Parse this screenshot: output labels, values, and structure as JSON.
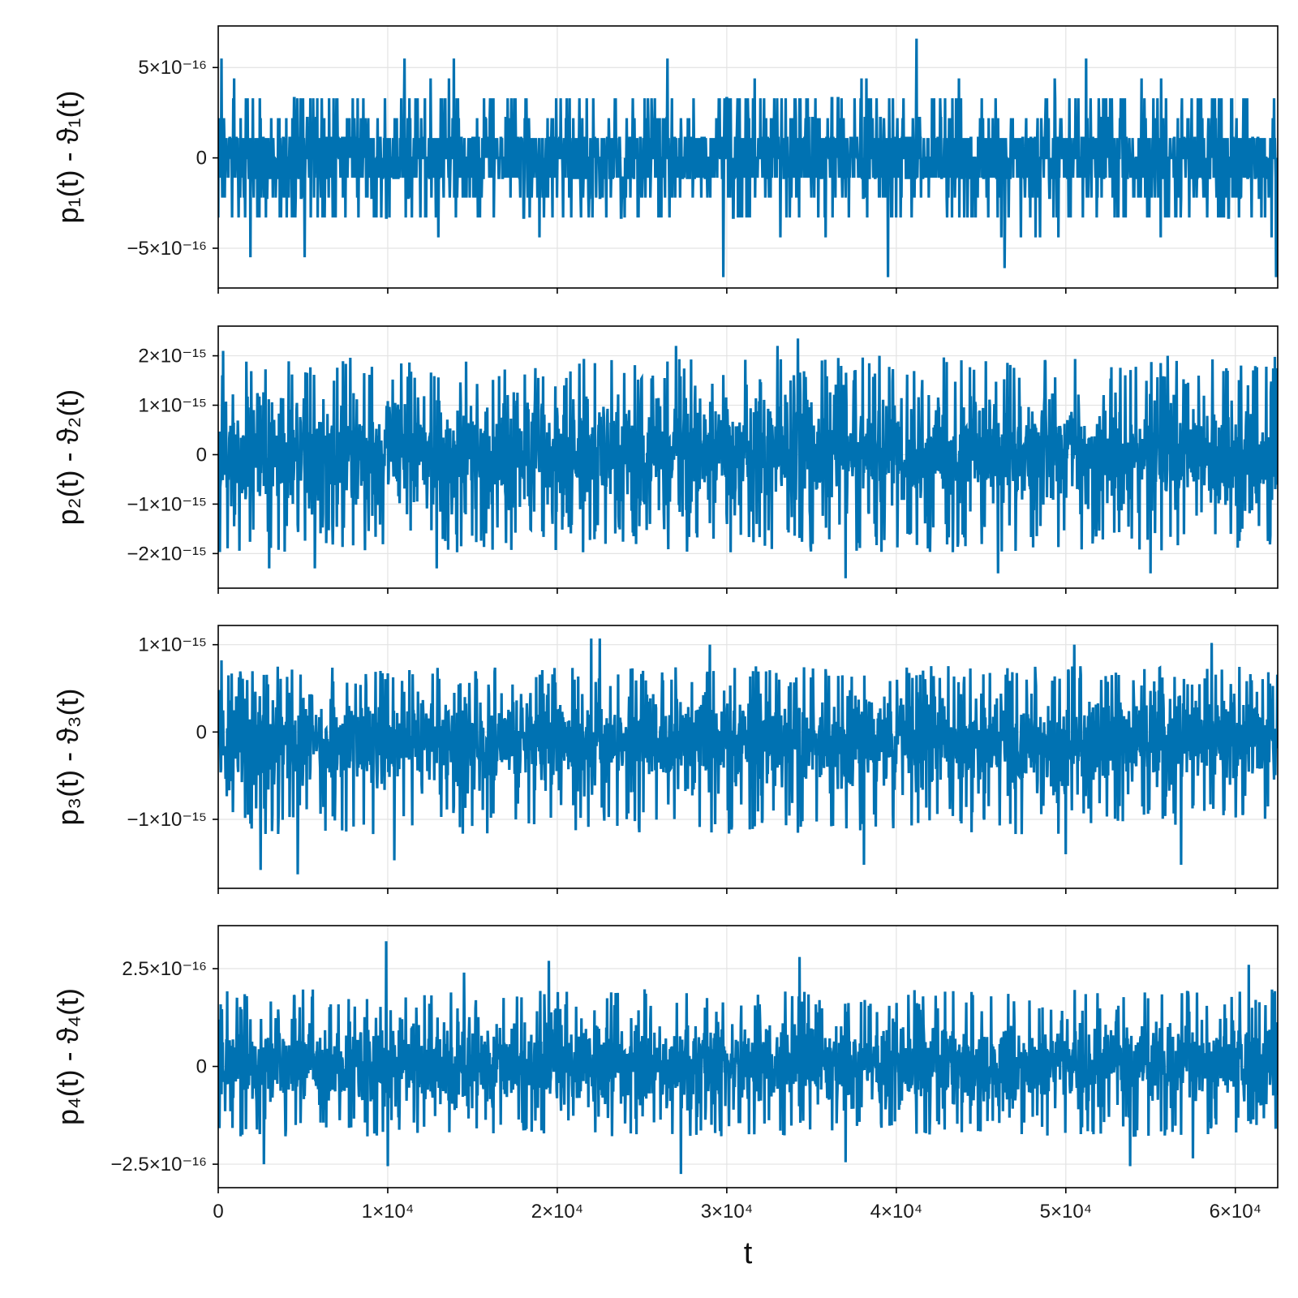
{
  "chart_data": [
    {
      "type": "line",
      "ylabel": "p₁(t) - ϑ₁(t)",
      "xlim": [
        0,
        62500
      ],
      "ylim": [
        -7.2e-16,
        7.3e-16
      ],
      "yticks": [
        {
          "value": 5e-16,
          "label": "5×10⁻¹⁶"
        },
        {
          "value": 0,
          "label": "0"
        },
        {
          "value": -5e-16,
          "label": "−5×10⁻¹⁶"
        }
      ],
      "series": [
        {
          "color": "#0072b2",
          "x_range": [
            0,
            62500
          ],
          "quantum": 1.1e-16,
          "core_band": [
            -2.2e-16,
            2.2e-16
          ],
          "peaks": [
            {
              "x": 200,
              "y": 5.5e-16
            },
            {
              "x": 11000,
              "y": 5.5e-16
            },
            {
              "x": 13900,
              "y": 5.5e-16
            },
            {
              "x": 26500,
              "y": 5.5e-16
            },
            {
              "x": 41200,
              "y": 6.6e-16
            },
            {
              "x": 51200,
              "y": 5.5e-16
            },
            {
              "x": 1900,
              "y": -5.5e-16
            },
            {
              "x": 5100,
              "y": -5.5e-16
            },
            {
              "x": 29800,
              "y": -6.6e-16
            },
            {
              "x": 39500,
              "y": -6.6e-16
            },
            {
              "x": 46400,
              "y": -6.1e-16
            },
            {
              "x": 62400,
              "y": -6.6e-16
            }
          ]
        }
      ]
    },
    {
      "type": "line",
      "ylabel": "p₂(t) - ϑ₂(t)",
      "xlim": [
        0,
        62500
      ],
      "ylim": [
        -2.7e-15,
        2.6e-15
      ],
      "yticks": [
        {
          "value": 2e-15,
          "label": "2×10⁻¹⁵"
        },
        {
          "value": 1e-15,
          "label": "1×10⁻¹⁵"
        },
        {
          "value": 0,
          "label": "0"
        },
        {
          "value": -1e-15,
          "label": "−1×10⁻¹⁵"
        },
        {
          "value": -2e-15,
          "label": "−2×10⁻¹⁵"
        }
      ],
      "series": [
        {
          "color": "#0072b2",
          "x_range": [
            0,
            62500
          ],
          "quantum": 0,
          "core_band": [
            -1.1e-15,
            1.1e-15
          ],
          "peaks": [
            {
              "x": 300,
              "y": 2.1e-15
            },
            {
              "x": 27000,
              "y": 2.2e-15
            },
            {
              "x": 33000,
              "y": 2.2e-15
            },
            {
              "x": 34200,
              "y": 2.35e-15
            },
            {
              "x": 39000,
              "y": 2e-15
            },
            {
              "x": 56000,
              "y": 2e-15
            },
            {
              "x": 3000,
              "y": -2.3e-15
            },
            {
              "x": 5700,
              "y": -2.3e-15
            },
            {
              "x": 12900,
              "y": -2.3e-15
            },
            {
              "x": 37000,
              "y": -2.5e-15
            },
            {
              "x": 46000,
              "y": -2.4e-15
            },
            {
              "x": 55000,
              "y": -2.4e-15
            }
          ]
        }
      ]
    },
    {
      "type": "line",
      "ylabel": "p₃(t) - ϑ₃(t)",
      "xlim": [
        0,
        62500
      ],
      "ylim": [
        -1.79e-15,
        1.22e-15
      ],
      "yticks": [
        {
          "value": 1e-15,
          "label": "1×10⁻¹⁵"
        },
        {
          "value": 0,
          "label": "0"
        },
        {
          "value": -1e-15,
          "label": "−1×10⁻¹⁵"
        }
      ],
      "series": [
        {
          "color": "#0072b2",
          "x_range": [
            0,
            62500
          ],
          "quantum": 0,
          "core_band": [
            -6.5e-16,
            4.2e-16
          ],
          "peaks": [
            {
              "x": 200,
              "y": 8.2e-16
            },
            {
              "x": 22000,
              "y": 1.07e-15
            },
            {
              "x": 22500,
              "y": 1.07e-15
            },
            {
              "x": 29000,
              "y": 1e-15
            },
            {
              "x": 50500,
              "y": 1e-15
            },
            {
              "x": 58600,
              "y": 1.02e-15
            },
            {
              "x": 2500,
              "y": -1.58e-15
            },
            {
              "x": 4700,
              "y": -1.63e-15
            },
            {
              "x": 10400,
              "y": -1.47e-15
            },
            {
              "x": 38100,
              "y": -1.52e-15
            },
            {
              "x": 50000,
              "y": -1.4e-15
            },
            {
              "x": 56800,
              "y": -1.52e-15
            }
          ]
        }
      ]
    },
    {
      "type": "line",
      "ylabel": "p₄(t) - ϑ₄(t)",
      "xlabel": "t",
      "xlim": [
        0,
        62500
      ],
      "ylim": [
        -3.1e-16,
        3.6e-16
      ],
      "xticks": [
        {
          "value": 0,
          "label": "0"
        },
        {
          "value": 10000,
          "label": "1×10⁴"
        },
        {
          "value": 20000,
          "label": "2×10⁴"
        },
        {
          "value": 30000,
          "label": "3×10⁴"
        },
        {
          "value": 40000,
          "label": "4×10⁴"
        },
        {
          "value": 50000,
          "label": "5×10⁴"
        },
        {
          "value": 60000,
          "label": "6×10⁴"
        }
      ],
      "yticks": [
        {
          "value": 2.5e-16,
          "label": "2.5×10⁻¹⁶"
        },
        {
          "value": 0,
          "label": "0"
        },
        {
          "value": -2.5e-16,
          "label": "−2.5×10⁻¹⁶"
        }
      ],
      "series": [
        {
          "color": "#0072b2",
          "x_range": [
            0,
            62500
          ],
          "quantum": 0,
          "core_band": [
            -1e-16,
            1.1e-16
          ],
          "peaks": [
            {
              "x": 9900,
              "y": 3.2e-16
            },
            {
              "x": 2700,
              "y": 2.5e-16
            },
            {
              "x": 14500,
              "y": 2.4e-16
            },
            {
              "x": 19500,
              "y": 2.7e-16
            },
            {
              "x": 34300,
              "y": 2.8e-16
            },
            {
              "x": 60800,
              "y": 2.6e-16
            },
            {
              "x": 2700,
              "y": -2.5e-16
            },
            {
              "x": 10000,
              "y": -2.55e-16
            },
            {
              "x": 27300,
              "y": -2.75e-16
            },
            {
              "x": 37000,
              "y": -2.45e-16
            },
            {
              "x": 53800,
              "y": -2.55e-16
            },
            {
              "x": 57500,
              "y": -2.35e-16
            }
          ]
        }
      ]
    }
  ]
}
